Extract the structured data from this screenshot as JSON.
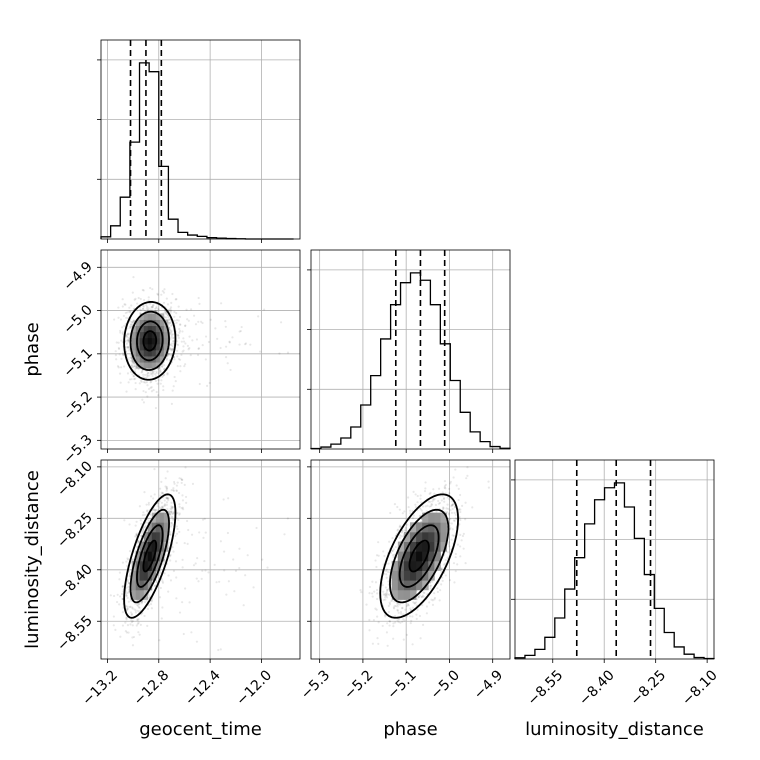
{
  "chart_data": {
    "type": "corner",
    "parameters": [
      "geocent_time",
      "phase",
      "luminosity_distance"
    ],
    "ranges": {
      "geocent_time": [
        -13.25,
        -11.7
      ],
      "phase": [
        -5.32,
        -4.86
      ],
      "luminosity_distance": [
        -8.66,
        -8.08
      ]
    },
    "ticks": {
      "geocent_time": [
        {
          "value": -13.2,
          "label": "−13.2"
        },
        {
          "value": -12.8,
          "label": "−12.8"
        },
        {
          "value": -12.4,
          "label": "−12.4"
        },
        {
          "value": -12.0,
          "label": "−12.0"
        }
      ],
      "phase": [
        {
          "value": -5.3,
          "label": "−5.3"
        },
        {
          "value": -5.2,
          "label": "−5.2"
        },
        {
          "value": -5.1,
          "label": "−5.1"
        },
        {
          "value": -5.0,
          "label": "−5.0"
        },
        {
          "value": -4.9,
          "label": "−4.9"
        }
      ],
      "luminosity_distance": [
        {
          "value": -8.55,
          "label": "−8.55"
        },
        {
          "value": -8.4,
          "label": "−8.40"
        },
        {
          "value": -8.25,
          "label": "−8.25"
        },
        {
          "value": -8.1,
          "label": "−8.10"
        }
      ]
    },
    "histograms": {
      "geocent_time": {
        "bin_edges": [
          -13.25,
          -13.175,
          -13.1,
          -13.025,
          -12.95,
          -12.875,
          -12.8,
          -12.725,
          -12.65,
          -12.575,
          -12.5,
          -12.425,
          -12.35,
          -12.275,
          -12.2,
          -12.125,
          -12.05,
          -11.975,
          -11.9,
          -11.825,
          -11.75
        ],
        "counts": [
          10,
          60,
          190,
          440,
          800,
          760,
          330,
          90,
          30,
          18,
          12,
          6,
          4,
          2,
          1,
          0,
          0,
          0,
          0,
          0
        ]
      },
      "phase": {
        "bin_edges": [
          -5.32,
          -5.297,
          -5.274,
          -5.251,
          -5.228,
          -5.205,
          -5.182,
          -5.159,
          -5.136,
          -5.113,
          -5.09,
          -5.067,
          -5.044,
          -5.021,
          -4.998,
          -4.975,
          -4.952,
          -4.929,
          -4.906,
          -4.883,
          -4.86
        ],
        "counts": [
          2,
          8,
          20,
          45,
          90,
          180,
          300,
          450,
          590,
          680,
          720,
          690,
          590,
          430,
          280,
          150,
          70,
          30,
          10,
          3
        ]
      },
      "luminosity_distance": {
        "bin_edges": [
          -8.66,
          -8.631,
          -8.602,
          -8.573,
          -8.544,
          -8.515,
          -8.486,
          -8.457,
          -8.428,
          -8.399,
          -8.37,
          -8.341,
          -8.312,
          -8.283,
          -8.254,
          -8.225,
          -8.196,
          -8.167,
          -8.138,
          -8.109,
          -8.08
        ],
        "counts": [
          5,
          15,
          40,
          90,
          170,
          290,
          420,
          560,
          660,
          710,
          730,
          630,
          500,
          350,
          210,
          110,
          50,
          20,
          6,
          2
        ]
      }
    },
    "quantiles": {
      "geocent_time": [
        -13.02,
        -12.9,
        -12.78
      ],
      "phase": [
        -5.124,
        -5.067,
        -5.011
      ],
      "luminosity_distance": [
        -8.48,
        -8.365,
        -8.265
      ]
    },
    "posterior_2d": {
      "phase_vs_geocent_time": {
        "mean_x": -12.87,
        "sd_x": 0.1,
        "mean_y": -5.07,
        "sd_y": 0.045,
        "rho": 0.05
      },
      "luminosity_distance_vs_geocent_time": {
        "mean_x": -12.87,
        "sd_x": 0.1,
        "mean_y": -8.36,
        "sd_y": 0.09,
        "rho": 0.7
      },
      "luminosity_distance_vs_phase": {
        "mean_x": -5.07,
        "sd_x": 0.045,
        "mean_y": -8.36,
        "sd_y": 0.09,
        "rho": 0.6
      }
    },
    "contour_levels_sigma": [
      0.5,
      1.0,
      1.5,
      2.0
    ],
    "grid": true
  }
}
